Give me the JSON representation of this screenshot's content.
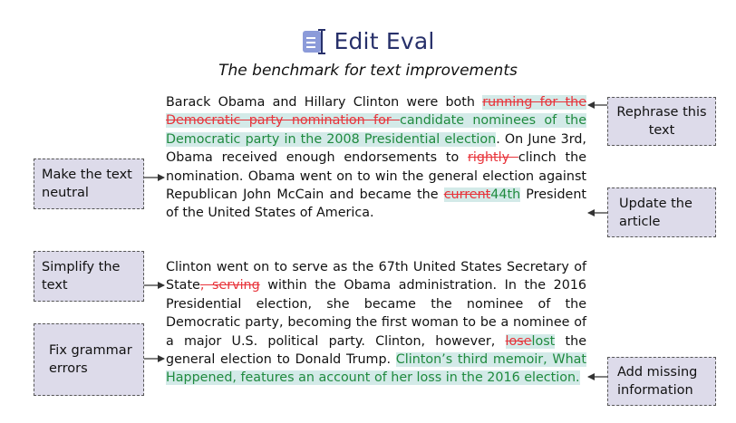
{
  "header": {
    "brand": "Edit Eval",
    "subtitle": "The benchmark for text improvements"
  },
  "paragraph1": {
    "s1": "Barack Obama and Hillary Clinton were both ",
    "d1": "running for the Democratic party nomination for ",
    "i1": "candidate nominees of the Democratic party in the 2008 Presidential election",
    "s2": ". On June 3rd, Obama received enough endorsements to ",
    "d2": "rightly ",
    "s3": "clinch the nomination. Obama went on to win the general election against Republican John McCain and became the ",
    "d3": "current",
    "i3": "44th",
    "s4": " President of the United States of America."
  },
  "paragraph2": {
    "s1": "Clinton went on to serve as the 67th United States Secretary of State",
    "d1": ", serving",
    "s2": " within the Obama administration. In the 2016 Presidential election, she became the nominee of the Democratic party, becoming the first woman to be a nominee of a major U.S. political party. Clinton, however, ",
    "d2": "lose",
    "i2": "lost",
    "s3": " the general election to Donald Trump. ",
    "i3": "Clinton’s third memoir, What Happened, features an account of her loss in the 2016 election."
  },
  "tasks": {
    "rephrase": "Rephrase this text",
    "neutral": "Make the text neutral",
    "update": "Update the article",
    "simplify": "Simplify the text",
    "grammar": "Fix grammar errors",
    "missing": "Add missing information"
  },
  "colors": {
    "deletion": "#e8333a",
    "insertion": "#1f8a3e",
    "highlight": "#d3eae8",
    "box_fill": "#dddbea",
    "brand": "#27306a"
  }
}
